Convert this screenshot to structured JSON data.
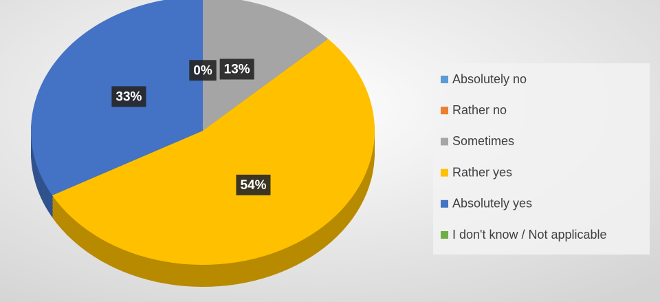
{
  "chart_data": {
    "type": "pie",
    "categories": [
      "Absolutely no",
      "Rather no",
      "Sometimes",
      "Rather yes",
      "Absolutely yes",
      "I don't know / Not applicable"
    ],
    "values": [
      0,
      0,
      13,
      54,
      33,
      0
    ],
    "value_labels": [
      "0%",
      null,
      "13%",
      "54%",
      "33%",
      null
    ],
    "colors": [
      "#5b9bd5",
      "#ed7d31",
      "#a5a5a5",
      "#ffc000",
      "#4472c4",
      "#70ad47"
    ],
    "legend": "right"
  }
}
